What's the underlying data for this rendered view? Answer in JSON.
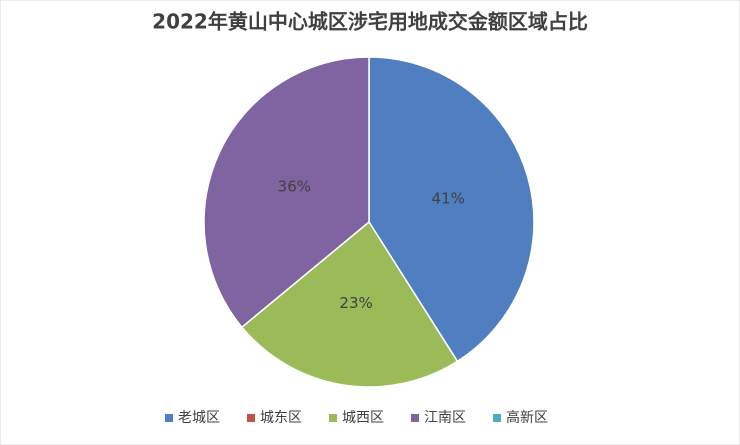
{
  "chart_data": {
    "type": "pie",
    "title": "2022年黄山中心城区涉宅用地成交金额区域占比",
    "categories": [
      "老城区",
      "城东区",
      "城西区",
      "江南区",
      "高新区"
    ],
    "values": [
      41,
      0,
      23,
      36,
      0
    ],
    "value_labels": [
      "41%",
      null,
      "23%",
      "36%",
      null
    ],
    "colors": [
      "#4f7fc0",
      "#c0504d",
      "#9bbb59",
      "#8064a2",
      "#4bacc6"
    ],
    "legend": "bottom"
  }
}
